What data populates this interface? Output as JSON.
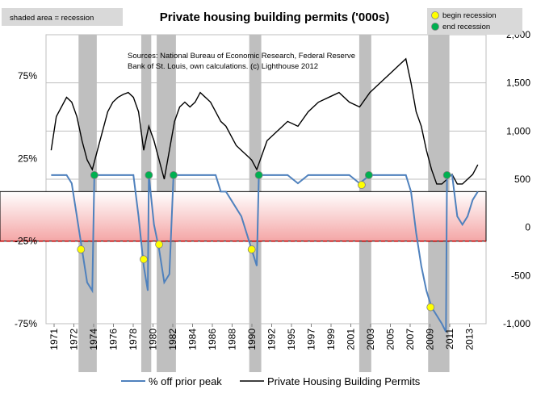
{
  "chart_data": {
    "type": "line",
    "title": "Private housing building permits ('000s)",
    "source_note": [
      "Sources: National Bureau of Economic Research, Federal Reserve",
      "Bank of St. Louis, own calculations. (c) Lighthouse 2012"
    ],
    "legend_boxes": {
      "shaded": "shaded area = recession",
      "begin": "begin recession",
      "end": "end recession"
    },
    "legend": [
      "% off prior peak",
      "Private Housing Building Permits"
    ],
    "colors": {
      "pct_line": "#4f81bd",
      "permits_line": "#000000",
      "recession": "#bfbfbf",
      "begin_marker": "#ffff00",
      "end_marker": "#00b050",
      "band_top": "#ffffff",
      "band_bottom": "#f4a6a6",
      "threshold": "#c00000"
    },
    "x_tick_labels": [
      "1971",
      "1972",
      "1974",
      "1976",
      "1978",
      "1980",
      "1982",
      "1984",
      "1986",
      "1988",
      "1990",
      "1992",
      "1995",
      "1997",
      "1999",
      "2001",
      "2003",
      "2005",
      "2007",
      "2009",
      "2011",
      "2013"
    ],
    "left_axis": {
      "ylim": [
        -75,
        100
      ],
      "tick_labels": [
        "75%",
        "25%",
        "-25%",
        "-75%"
      ]
    },
    "right_axis": {
      "ylim": [
        -1000,
        2000
      ],
      "tick_labels": [
        "2,000",
        "1,500",
        "1,000",
        "500",
        "0",
        "-500",
        "-1,000"
      ]
    },
    "recessions": [
      [
        1973.9,
        1975.2
      ],
      [
        1980.0,
        1980.5
      ],
      [
        1981.5,
        1982.9
      ],
      [
        1990.5,
        1991.2
      ],
      [
        2001.2,
        2001.9
      ],
      [
        2007.9,
        2009.5
      ]
    ],
    "begin_recession": [
      [
        1973.9,
        -30
      ],
      [
        1980.0,
        -36
      ],
      [
        1981.5,
        -27
      ],
      [
        1990.5,
        -30
      ],
      [
        2001.2,
        9
      ],
      [
        2007.9,
        -65
      ]
    ],
    "end_recession": [
      [
        1975.2,
        15
      ],
      [
        1980.5,
        15
      ],
      [
        1982.9,
        15
      ],
      [
        1991.2,
        15
      ],
      [
        2001.9,
        15
      ],
      [
        2009.5,
        15
      ]
    ],
    "highlight_band": [
      -25,
      5
    ],
    "threshold_line": -25,
    "series": [
      {
        "name": "Private Housing Building Permits",
        "axis": "right",
        "x": [
          1971.0,
          1971.5,
          1972.0,
          1972.5,
          1973.0,
          1973.5,
          1974.0,
          1974.5,
          1975.0,
          1975.5,
          1976.0,
          1976.5,
          1977.0,
          1977.5,
          1978.0,
          1978.5,
          1979.0,
          1979.5,
          1980.0,
          1980.5,
          1981.0,
          1981.5,
          1982.0,
          1982.5,
          1983.0,
          1983.5,
          1984.0,
          1984.5,
          1985.0,
          1985.5,
          1986.0,
          1986.5,
          1987.0,
          1987.5,
          1988.0,
          1988.5,
          1989.0,
          1989.5,
          1990.0,
          1990.5,
          1991.0,
          1991.5,
          1992.0,
          1993.0,
          1994.0,
          1995.0,
          1996.0,
          1997.0,
          1998.0,
          1999.0,
          2000.0,
          2001.0,
          2002.0,
          2003.0,
          2004.0,
          2005.0,
          2005.5,
          2006.0,
          2006.5,
          2007.0,
          2007.5,
          2008.0,
          2008.5,
          2009.0,
          2009.5,
          2010.0,
          2010.5,
          2011.0,
          2011.5,
          2012.0,
          2012.5
        ],
        "values": [
          800,
          1150,
          1250,
          1350,
          1300,
          1150,
          900,
          700,
          600,
          800,
          1000,
          1200,
          1300,
          1350,
          1380,
          1400,
          1350,
          1200,
          800,
          1050,
          900,
          700,
          500,
          800,
          1100,
          1250,
          1300,
          1250,
          1300,
          1400,
          1350,
          1300,
          1200,
          1100,
          1050,
          950,
          850,
          800,
          750,
          700,
          600,
          750,
          900,
          1000,
          1100,
          1050,
          1200,
          1300,
          1350,
          1400,
          1300,
          1250,
          1400,
          1500,
          1600,
          1700,
          1750,
          1500,
          1200,
          1050,
          800,
          600,
          450,
          450,
          500,
          550,
          450,
          450,
          500,
          550,
          650
        ]
      },
      {
        "name": "% off prior peak",
        "axis": "left",
        "x": [
          1971.0,
          1971.5,
          1972.0,
          1972.5,
          1973.0,
          1973.5,
          1974.0,
          1974.5,
          1975.0,
          1975.2,
          1975.4,
          1976.0,
          1977.0,
          1978.0,
          1979.0,
          1979.5,
          1980.0,
          1980.4,
          1980.5,
          1981.0,
          1981.5,
          1982.0,
          1982.5,
          1982.9,
          1983.2,
          1984.0,
          1985.0,
          1986.0,
          1987.0,
          1987.5,
          1988.0,
          1988.5,
          1989.0,
          1989.5,
          1990.0,
          1990.5,
          1991.0,
          1991.2,
          1991.4,
          1992.0,
          1993.0,
          1994.0,
          1995.0,
          1996.0,
          1997.0,
          1998.0,
          1999.0,
          2000.0,
          2001.0,
          2002.0,
          2003.0,
          2004.0,
          2005.0,
          2005.5,
          2006.0,
          2006.5,
          2007.0,
          2007.5,
          2008.0,
          2008.5,
          2009.0,
          2009.4,
          2009.5,
          2010.0,
          2010.5,
          2011.0,
          2011.5,
          2012.0,
          2012.5
        ],
        "values": [
          15,
          15,
          15,
          15,
          10,
          -10,
          -30,
          -50,
          -55,
          15,
          15,
          15,
          15,
          15,
          15,
          -10,
          -40,
          -55,
          15,
          -15,
          -30,
          -50,
          -45,
          15,
          15,
          15,
          15,
          15,
          15,
          5,
          5,
          0,
          -5,
          -10,
          -20,
          -30,
          -40,
          15,
          15,
          15,
          15,
          15,
          10,
          15,
          15,
          15,
          15,
          15,
          10,
          15,
          15,
          15,
          15,
          15,
          5,
          -20,
          -40,
          -55,
          -65,
          -70,
          -75,
          -80,
          15,
          15,
          -10,
          -15,
          -10,
          0,
          5
        ]
      }
    ]
  }
}
